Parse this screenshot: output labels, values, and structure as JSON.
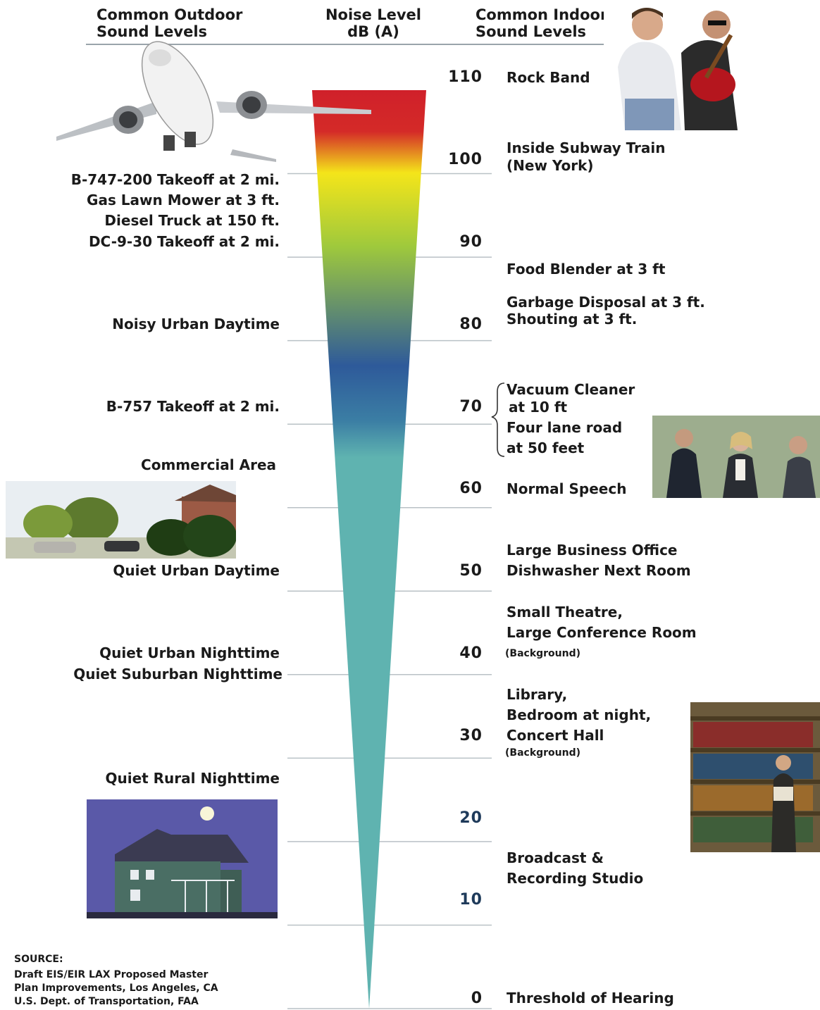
{
  "headers": {
    "outdoor": [
      "Common Outdoor",
      "Sound Levels"
    ],
    "noise": [
      "Noise Level",
      "dB (A)"
    ],
    "indoor": [
      "Common Indoor",
      "Sound Levels"
    ]
  },
  "chart_data": {
    "type": "scale",
    "unit": "dB (A)",
    "ticks": [
      "110",
      "100",
      "90",
      "80",
      "70",
      "60",
      "50",
      "40",
      "30",
      "20",
      "10",
      "0"
    ],
    "ylim": [
      0,
      110
    ],
    "colors": [
      "#d0202a",
      "#f4e51a",
      "#9fc93c",
      "#2e5a9a",
      "#5fb3b0"
    ]
  },
  "outdoor": [
    {
      "label": "B-747-200 Takeoff at 2 mi."
    },
    {
      "label": "Gas Lawn Mower at 3 ft."
    },
    {
      "label": "Diesel Truck at 150 ft."
    },
    {
      "label": "DC-9-30 Takeoff at 2 mi."
    },
    {
      "label": "Noisy Urban Daytime"
    },
    {
      "label": "B-757 Takeoff at 2 mi."
    },
    {
      "label": "Commercial Area"
    },
    {
      "label": "Quiet Urban Daytime"
    },
    {
      "label": "Quiet Urban Nighttime"
    },
    {
      "label": "Quiet Suburban Nighttime"
    },
    {
      "label": "Quiet  Rural Nighttime"
    }
  ],
  "indoor": [
    {
      "label": "Rock Band"
    },
    {
      "label": "Inside Subway Train"
    },
    {
      "label": "(New York)"
    },
    {
      "label": "Food Blender at 3 ft"
    },
    {
      "label": "Garbage Disposal at 3 ft."
    },
    {
      "label": "Shouting at 3 ft."
    },
    {
      "label": "Vacuum Cleaner"
    },
    {
      "label": "at 10 ft"
    },
    {
      "label": "Four lane road"
    },
    {
      "label": "at 50 feet"
    },
    {
      "label": "Normal Speech"
    },
    {
      "label": "Large Business Office"
    },
    {
      "label": "Dishwasher Next Room"
    },
    {
      "label": "Small Theatre,"
    },
    {
      "label": "Large Conference Room"
    },
    {
      "label": "(Background)"
    },
    {
      "label": "Library,"
    },
    {
      "label": "Bedroom at night,"
    },
    {
      "label": "Concert Hall"
    },
    {
      "label": "(Background)"
    },
    {
      "label": "Broadcast &"
    },
    {
      "label": "Recording Studio"
    },
    {
      "label": "Threshold of Hearing"
    }
  ],
  "source": [
    "SOURCE:",
    "Draft EIS/EIR LAX Proposed Master",
    "Plan Improvements, Los Angeles, CA",
    "U.S. Dept. of Transportation, FAA"
  ],
  "images": {
    "airplane": "airplane-photo",
    "rock_band": "rock-band-photo",
    "suburban_street": "suburban-street-photo",
    "office_people": "office-conversation-photo",
    "library": "library-photo",
    "rural_house": "rural-house-night-photo"
  }
}
